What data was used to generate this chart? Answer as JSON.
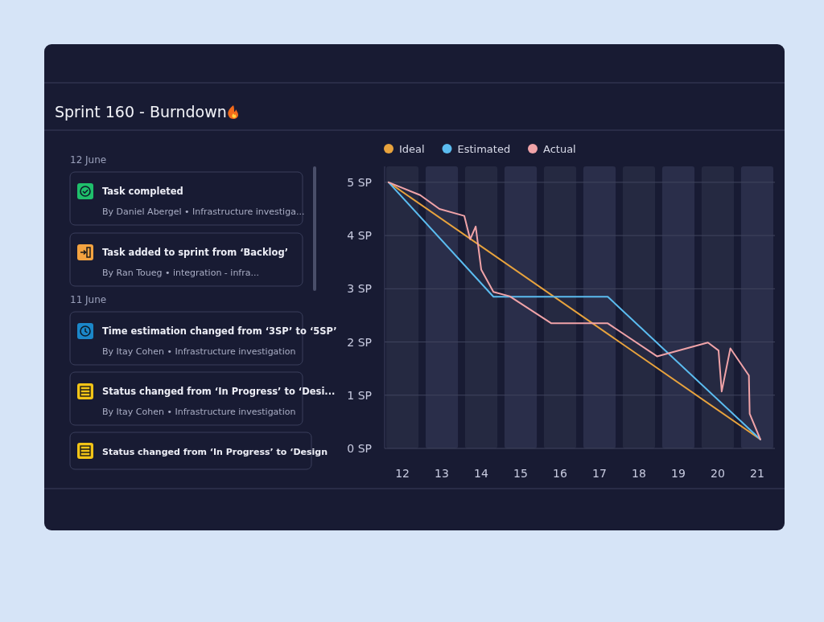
{
  "chart_data": [
    {
      "type": "other",
      "title": "Sprint 160 - Burndown",
      "annotations": [
        "12 June",
        "Task completed",
        "By Daniel Abergel • Infrastructure investiga...",
        "Task added to sprint from ‘Backlog’",
        "By Ran Toueg • integration - infra...",
        "11 June",
        "Time estimation changed from ‘3SP’ to ‘5SP’",
        "By Itay Cohen • Infrastructure investigation",
        "Status changed from ‘In Progress’ to ‘Desi...",
        "By Itay Cohen • Infrastructure investigation",
        "Status changed from ‘In Progress’ to ‘Design"
      ]
    },
    {
      "type": "line",
      "bands": [
        {
          "axis": "x",
          "from": 11.59,
          "to": 12.41,
          "color": "#252941"
        },
        {
          "axis": "x",
          "from": 12.59,
          "to": 13.41,
          "color": "#2a2e4a"
        },
        {
          "axis": "x",
          "from": 13.59,
          "to": 14.41,
          "color": "#252941"
        },
        {
          "axis": "x",
          "from": 14.59,
          "to": 15.41,
          "color": "#2a2e4a"
        },
        {
          "axis": "x",
          "from": 15.59,
          "to": 16.41,
          "color": "#252941"
        },
        {
          "axis": "x",
          "from": 16.59,
          "to": 17.41,
          "color": "#2a2e4a"
        },
        {
          "axis": "x",
          "from": 17.59,
          "to": 18.41,
          "color": "#252941"
        },
        {
          "axis": "x",
          "from": 18.59,
          "to": 19.41,
          "color": "#2a2e4a"
        },
        {
          "axis": "x",
          "from": 19.59,
          "to": 20.41,
          "color": "#252941"
        },
        {
          "axis": "x",
          "from": 20.59,
          "to": 21.41,
          "color": "#2a2e4a"
        }
      ],
      "xlim": [
        11.55,
        21.45
      ],
      "xticks": [
        12,
        13,
        14,
        15,
        16,
        17,
        18,
        19,
        20,
        21
      ],
      "ylim": [
        0,
        5.3
      ],
      "yticks": [
        {
          "value": 0,
          "label": "0 SP"
        },
        {
          "value": 1,
          "label": "1 SP"
        },
        {
          "value": 2,
          "label": "2 SP"
        },
        {
          "value": 3,
          "label": "3 SP"
        },
        {
          "value": 4,
          "label": "4 SP"
        },
        {
          "value": 5,
          "label": "5 SP"
        }
      ],
      "grid": "y",
      "legend": "top left",
      "marker": "none",
      "line_style": "solid",
      "series": [
        {
          "name": "Ideal",
          "color": "#e8a33d",
          "x": [
            11.65,
            21.08
          ],
          "values": [
            5,
            0.17
          ]
        },
        {
          "name": "Estimated",
          "color": "#5bbcf0",
          "x": [
            11.65,
            14.31,
            17.21,
            21.08
          ],
          "values": [
            5,
            2.85,
            2.85,
            0.17
          ]
        },
        {
          "name": "Actual",
          "color": "#f0a3a8",
          "x": [
            11.65,
            12.45,
            12.94,
            13.57,
            13.72,
            13.86,
            14.0,
            14.31,
            14.72,
            15.78,
            17.21,
            18.46,
            19.75,
            20.02,
            20.1,
            20.32,
            20.79,
            20.81,
            21.08
          ],
          "values": [
            5,
            4.76,
            4.5,
            4.37,
            3.93,
            4.17,
            3.36,
            2.94,
            2.86,
            2.35,
            2.35,
            1.73,
            1.99,
            1.84,
            1.07,
            1.88,
            1.37,
            0.65,
            0.17
          ]
        }
      ]
    }
  ]
}
